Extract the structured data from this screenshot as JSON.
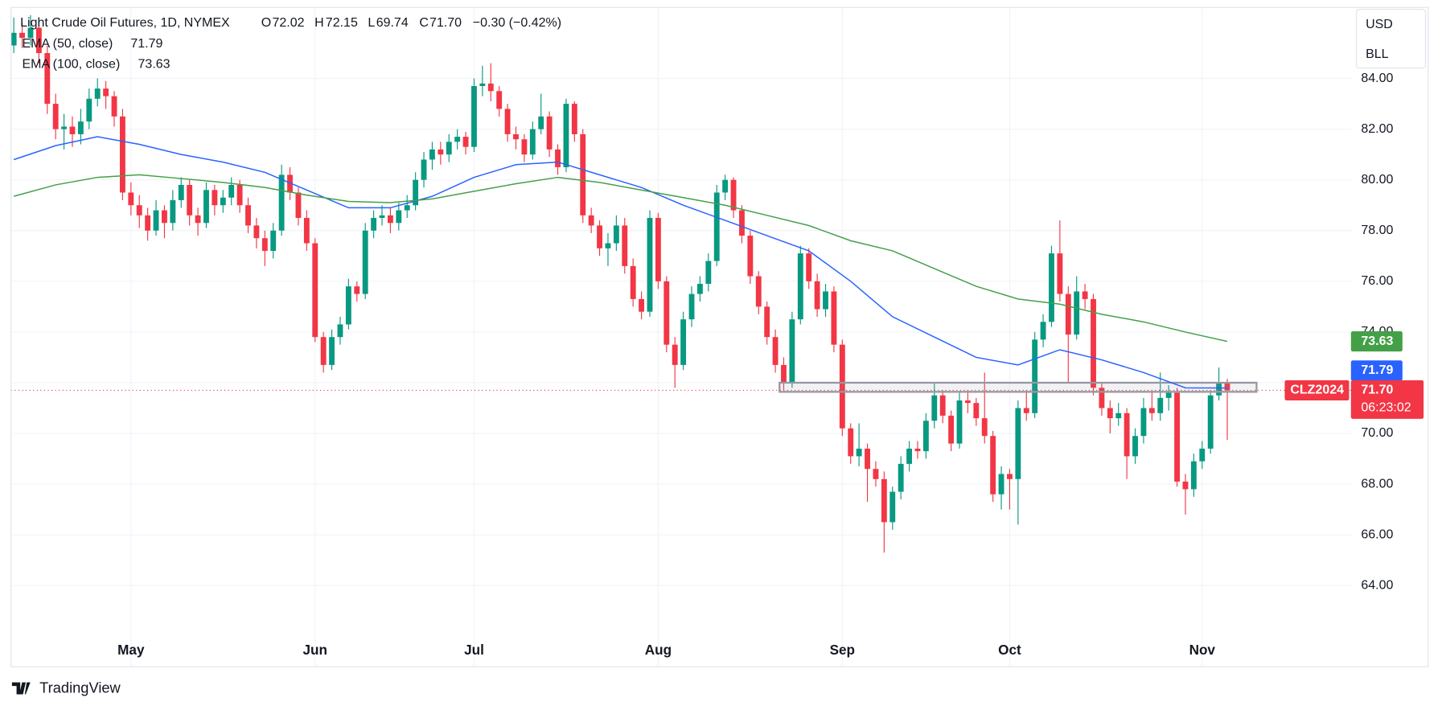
{
  "chart_data": {
    "type": "candlestick",
    "header": {
      "title": "Light Crude Oil Futures, 1D, NYMEX",
      "ohlc": [
        {
          "key": "O",
          "value": "72.02"
        },
        {
          "key": "H",
          "value": "72.15"
        },
        {
          "key": "L",
          "value": "69.74"
        },
        {
          "key": "C",
          "value": "71.70"
        }
      ],
      "change": "−0.30 (−0.42%)"
    },
    "currency": "USD",
    "unit": "BLL",
    "symbol": "CLZ2024",
    "last_price": "71.70",
    "countdown": "06:23:02",
    "brand": "TradingView",
    "up_color": "#089981",
    "down_color": "#f23645",
    "ylim": [
      60.8,
      86.8
    ],
    "yticks": [
      {
        "value": 64,
        "label": "64.00"
      },
      {
        "value": 66,
        "label": "66.00"
      },
      {
        "value": 68,
        "label": "68.00"
      },
      {
        "value": 70,
        "label": "70.00"
      },
      {
        "value": 72,
        "label": "72.00"
      },
      {
        "value": 74,
        "label": "74.00"
      },
      {
        "value": 76,
        "label": "76.00"
      },
      {
        "value": 78,
        "label": "78.00"
      },
      {
        "value": 80,
        "label": "80.00"
      },
      {
        "value": 82,
        "label": "82.00"
      },
      {
        "value": 84,
        "label": "84.00"
      }
    ],
    "xticks": [
      {
        "value": 14,
        "label": "May"
      },
      {
        "value": 36,
        "label": "Jun"
      },
      {
        "value": 55,
        "label": "Jul"
      },
      {
        "value": 77,
        "label": "Aug"
      },
      {
        "value": 99,
        "label": "Sep"
      },
      {
        "value": 119,
        "label": "Oct"
      },
      {
        "value": 142,
        "label": "Nov"
      }
    ],
    "grid": true,
    "zone": {
      "from": 91.5,
      "to": 148.5,
      "low": 71.64,
      "high": 72.0
    },
    "candles": [
      [
        85.3,
        86.4,
        85.0,
        85.8
      ],
      [
        85.8,
        86.2,
        85.2,
        85.6
      ],
      [
        85.6,
        86.5,
        85.3,
        86.0
      ],
      [
        86.0,
        86.3,
        84.6,
        85.0
      ],
      [
        85.0,
        85.3,
        82.6,
        83.0
      ],
      [
        83.0,
        83.4,
        81.6,
        82.0
      ],
      [
        82.0,
        82.6,
        81.2,
        82.1
      ],
      [
        82.1,
        82.5,
        81.3,
        81.8
      ],
      [
        81.8,
        82.8,
        81.4,
        82.3
      ],
      [
        82.3,
        83.6,
        82.0,
        83.2
      ],
      [
        83.2,
        84.0,
        82.9,
        83.6
      ],
      [
        83.6,
        83.9,
        82.8,
        83.3
      ],
      [
        83.3,
        83.5,
        82.1,
        82.5
      ],
      [
        82.5,
        82.8,
        79.2,
        79.5
      ],
      [
        79.5,
        79.9,
        78.6,
        79.0
      ],
      [
        79.0,
        79.4,
        78.1,
        78.6
      ],
      [
        78.6,
        78.9,
        77.6,
        78.0
      ],
      [
        78.0,
        79.2,
        77.8,
        78.8
      ],
      [
        78.8,
        79.0,
        77.7,
        78.3
      ],
      [
        78.3,
        79.6,
        78.0,
        79.2
      ],
      [
        79.2,
        80.1,
        78.9,
        79.8
      ],
      [
        79.8,
        80.0,
        78.2,
        78.6
      ],
      [
        78.6,
        78.9,
        77.8,
        78.3
      ],
      [
        78.3,
        79.9,
        78.1,
        79.6
      ],
      [
        79.6,
        79.8,
        78.6,
        79.0
      ],
      [
        79.0,
        79.6,
        78.7,
        79.3
      ],
      [
        79.3,
        80.1,
        79.0,
        79.8
      ],
      [
        79.8,
        80.0,
        78.7,
        79.0
      ],
      [
        79.0,
        79.3,
        77.9,
        78.2
      ],
      [
        78.2,
        78.5,
        77.3,
        77.7
      ],
      [
        77.7,
        78.0,
        76.6,
        77.2
      ],
      [
        77.2,
        78.3,
        76.9,
        78.0
      ],
      [
        78.0,
        80.6,
        77.8,
        80.2
      ],
      [
        80.2,
        80.5,
        79.2,
        79.5
      ],
      [
        79.5,
        79.7,
        78.2,
        78.5
      ],
      [
        78.5,
        78.8,
        77.2,
        77.5
      ],
      [
        77.5,
        77.7,
        73.6,
        73.8
      ],
      [
        73.8,
        74.0,
        72.4,
        72.7
      ],
      [
        72.7,
        74.1,
        72.5,
        73.8
      ],
      [
        73.8,
        74.6,
        73.5,
        74.3
      ],
      [
        74.3,
        76.1,
        74.1,
        75.8
      ],
      [
        75.8,
        76.0,
        75.2,
        75.5
      ],
      [
        75.5,
        78.3,
        75.3,
        78.0
      ],
      [
        78.0,
        78.8,
        77.7,
        78.5
      ],
      [
        78.5,
        79.0,
        78.2,
        78.6
      ],
      [
        78.6,
        78.9,
        77.9,
        78.3
      ],
      [
        78.3,
        79.1,
        78.0,
        78.8
      ],
      [
        78.8,
        79.4,
        78.5,
        79.0
      ],
      [
        79.0,
        80.3,
        78.8,
        80.0
      ],
      [
        80.0,
        81.1,
        79.7,
        80.8
      ],
      [
        80.8,
        81.5,
        80.4,
        81.2
      ],
      [
        81.2,
        81.5,
        80.6,
        81.0
      ],
      [
        81.0,
        81.8,
        80.7,
        81.5
      ],
      [
        81.5,
        82.0,
        81.2,
        81.7
      ],
      [
        81.7,
        81.9,
        81.0,
        81.3
      ],
      [
        81.3,
        84.0,
        81.1,
        83.7
      ],
      [
        83.7,
        84.5,
        83.3,
        83.8
      ],
      [
        83.8,
        84.6,
        83.1,
        83.5
      ],
      [
        83.5,
        83.7,
        82.5,
        82.8
      ],
      [
        82.8,
        83.0,
        81.5,
        81.8
      ],
      [
        81.8,
        82.1,
        81.2,
        81.6
      ],
      [
        81.6,
        81.8,
        80.7,
        81.0
      ],
      [
        81.0,
        82.3,
        80.8,
        82.0
      ],
      [
        82.0,
        83.4,
        81.8,
        82.5
      ],
      [
        82.5,
        82.7,
        80.9,
        81.2
      ],
      [
        81.2,
        81.4,
        80.2,
        80.5
      ],
      [
        80.5,
        83.2,
        80.3,
        83.0
      ],
      [
        83.0,
        83.1,
        81.5,
        81.8
      ],
      [
        81.8,
        82.0,
        78.3,
        78.6
      ],
      [
        78.6,
        78.9,
        77.9,
        78.2
      ],
      [
        78.2,
        78.4,
        77.0,
        77.3
      ],
      [
        77.3,
        77.9,
        76.6,
        77.5
      ],
      [
        77.5,
        78.6,
        77.2,
        78.2
      ],
      [
        78.2,
        78.5,
        76.3,
        76.6
      ],
      [
        76.6,
        76.9,
        75.0,
        75.3
      ],
      [
        75.3,
        75.6,
        74.5,
        74.8
      ],
      [
        74.8,
        78.8,
        74.6,
        78.5
      ],
      [
        78.5,
        78.7,
        75.7,
        76.0
      ],
      [
        76.0,
        76.2,
        73.2,
        73.5
      ],
      [
        73.5,
        73.8,
        71.8,
        72.7
      ],
      [
        72.7,
        74.8,
        72.5,
        74.5
      ],
      [
        74.5,
        75.8,
        74.2,
        75.5
      ],
      [
        75.5,
        76.2,
        75.2,
        75.9
      ],
      [
        75.9,
        77.1,
        75.6,
        76.8
      ],
      [
        76.8,
        79.8,
        76.6,
        79.5
      ],
      [
        79.5,
        80.2,
        79.2,
        80.0
      ],
      [
        80.0,
        80.1,
        78.5,
        78.8
      ],
      [
        78.8,
        79.0,
        77.5,
        77.8
      ],
      [
        77.8,
        78.0,
        75.9,
        76.2
      ],
      [
        76.2,
        76.4,
        74.7,
        75.0
      ],
      [
        75.0,
        75.2,
        73.5,
        73.8
      ],
      [
        73.8,
        74.1,
        72.4,
        72.7
      ],
      [
        72.7,
        73.0,
        71.7,
        72.0
      ],
      [
        72.0,
        74.8,
        71.8,
        74.5
      ],
      [
        74.5,
        77.4,
        74.3,
        77.1
      ],
      [
        77.1,
        77.3,
        75.7,
        76.0
      ],
      [
        76.0,
        76.3,
        74.6,
        74.9
      ],
      [
        74.9,
        75.9,
        74.6,
        75.6
      ],
      [
        75.6,
        75.8,
        73.2,
        73.5
      ],
      [
        73.5,
        73.7,
        69.9,
        70.2
      ],
      [
        70.2,
        70.4,
        68.8,
        69.1
      ],
      [
        69.1,
        70.4,
        68.7,
        69.4
      ],
      [
        69.4,
        69.6,
        67.3,
        68.6
      ],
      [
        68.6,
        68.9,
        67.9,
        68.2
      ],
      [
        68.2,
        68.5,
        65.3,
        66.5
      ],
      [
        66.5,
        67.9,
        66.2,
        67.7
      ],
      [
        67.7,
        69.1,
        67.4,
        68.8
      ],
      [
        68.8,
        69.7,
        68.5,
        69.4
      ],
      [
        69.4,
        69.7,
        69.0,
        69.3
      ],
      [
        69.3,
        70.8,
        69.0,
        70.5
      ],
      [
        70.5,
        72.0,
        70.2,
        71.5
      ],
      [
        71.5,
        71.7,
        70.4,
        70.7
      ],
      [
        70.7,
        70.9,
        69.3,
        69.6
      ],
      [
        69.6,
        71.6,
        69.4,
        71.3
      ],
      [
        71.3,
        71.7,
        70.8,
        71.2
      ],
      [
        71.2,
        71.4,
        70.3,
        70.6
      ],
      [
        70.6,
        72.4,
        69.6,
        69.9
      ],
      [
        69.9,
        70.1,
        67.3,
        67.6
      ],
      [
        67.6,
        68.7,
        67.0,
        68.4
      ],
      [
        68.4,
        68.6,
        67.0,
        68.2
      ],
      [
        68.2,
        71.3,
        66.4,
        71.0
      ],
      [
        71.0,
        71.7,
        70.5,
        70.8
      ],
      [
        70.8,
        74.0,
        70.6,
        73.7
      ],
      [
        73.7,
        74.7,
        73.4,
        74.4
      ],
      [
        74.4,
        77.4,
        74.2,
        77.1
      ],
      [
        77.1,
        78.4,
        75.2,
        75.5
      ],
      [
        75.5,
        75.8,
        72.0,
        73.9
      ],
      [
        73.9,
        76.2,
        73.7,
        75.6
      ],
      [
        75.6,
        75.9,
        74.9,
        75.3
      ],
      [
        75.3,
        75.5,
        71.5,
        71.8
      ],
      [
        71.8,
        72.0,
        70.7,
        71.0
      ],
      [
        71.0,
        71.3,
        70.0,
        70.6
      ],
      [
        70.6,
        71.2,
        70.3,
        70.8
      ],
      [
        70.8,
        71.0,
        68.2,
        69.1
      ],
      [
        69.1,
        70.2,
        68.8,
        69.9
      ],
      [
        69.9,
        71.4,
        69.6,
        71.0
      ],
      [
        71.0,
        71.7,
        70.5,
        70.8
      ],
      [
        70.8,
        72.4,
        70.5,
        71.4
      ],
      [
        71.4,
        71.9,
        70.9,
        71.6
      ],
      [
        71.6,
        71.8,
        67.9,
        68.1
      ],
      [
        68.1,
        68.4,
        66.8,
        67.8
      ],
      [
        67.8,
        69.2,
        67.5,
        68.9
      ],
      [
        68.9,
        69.7,
        68.6,
        69.4
      ],
      [
        69.4,
        71.7,
        69.2,
        71.5
      ],
      [
        71.5,
        72.6,
        71.3,
        72.0
      ],
      [
        72.02,
        72.15,
        69.74,
        71.7
      ]
    ],
    "series": [
      {
        "name": "EMA (50, close)",
        "color": "#2962ff",
        "last_label": "71.79",
        "x": [
          0,
          5,
          10,
          15,
          20,
          25,
          30,
          35,
          40,
          45,
          50,
          55,
          60,
          65,
          70,
          75,
          80,
          85,
          90,
          95,
          100,
          105,
          110,
          115,
          120,
          125,
          130,
          135,
          140,
          145
        ],
        "values": [
          80.8,
          81.35,
          81.7,
          81.4,
          81.0,
          80.7,
          80.3,
          79.6,
          78.9,
          78.9,
          79.35,
          80.1,
          80.6,
          80.7,
          80.2,
          79.7,
          79.0,
          78.4,
          77.8,
          77.2,
          76.0,
          74.6,
          73.8,
          73.0,
          72.7,
          73.3,
          72.9,
          72.4,
          71.8,
          71.79
        ]
      },
      {
        "name": "EMA (100, close)",
        "color": "#43a047",
        "last_label": "73.63",
        "x": [
          0,
          5,
          10,
          15,
          20,
          25,
          30,
          35,
          40,
          45,
          50,
          55,
          60,
          65,
          70,
          75,
          80,
          85,
          90,
          95,
          100,
          105,
          110,
          115,
          120,
          125,
          130,
          135,
          140,
          145
        ],
        "values": [
          79.35,
          79.8,
          80.1,
          80.2,
          80.05,
          79.9,
          79.7,
          79.4,
          79.15,
          79.1,
          79.25,
          79.55,
          79.85,
          80.1,
          79.9,
          79.6,
          79.3,
          79.0,
          78.6,
          78.2,
          77.6,
          77.2,
          76.5,
          75.8,
          75.3,
          75.1,
          74.7,
          74.4,
          74.0,
          73.63
        ]
      }
    ]
  }
}
